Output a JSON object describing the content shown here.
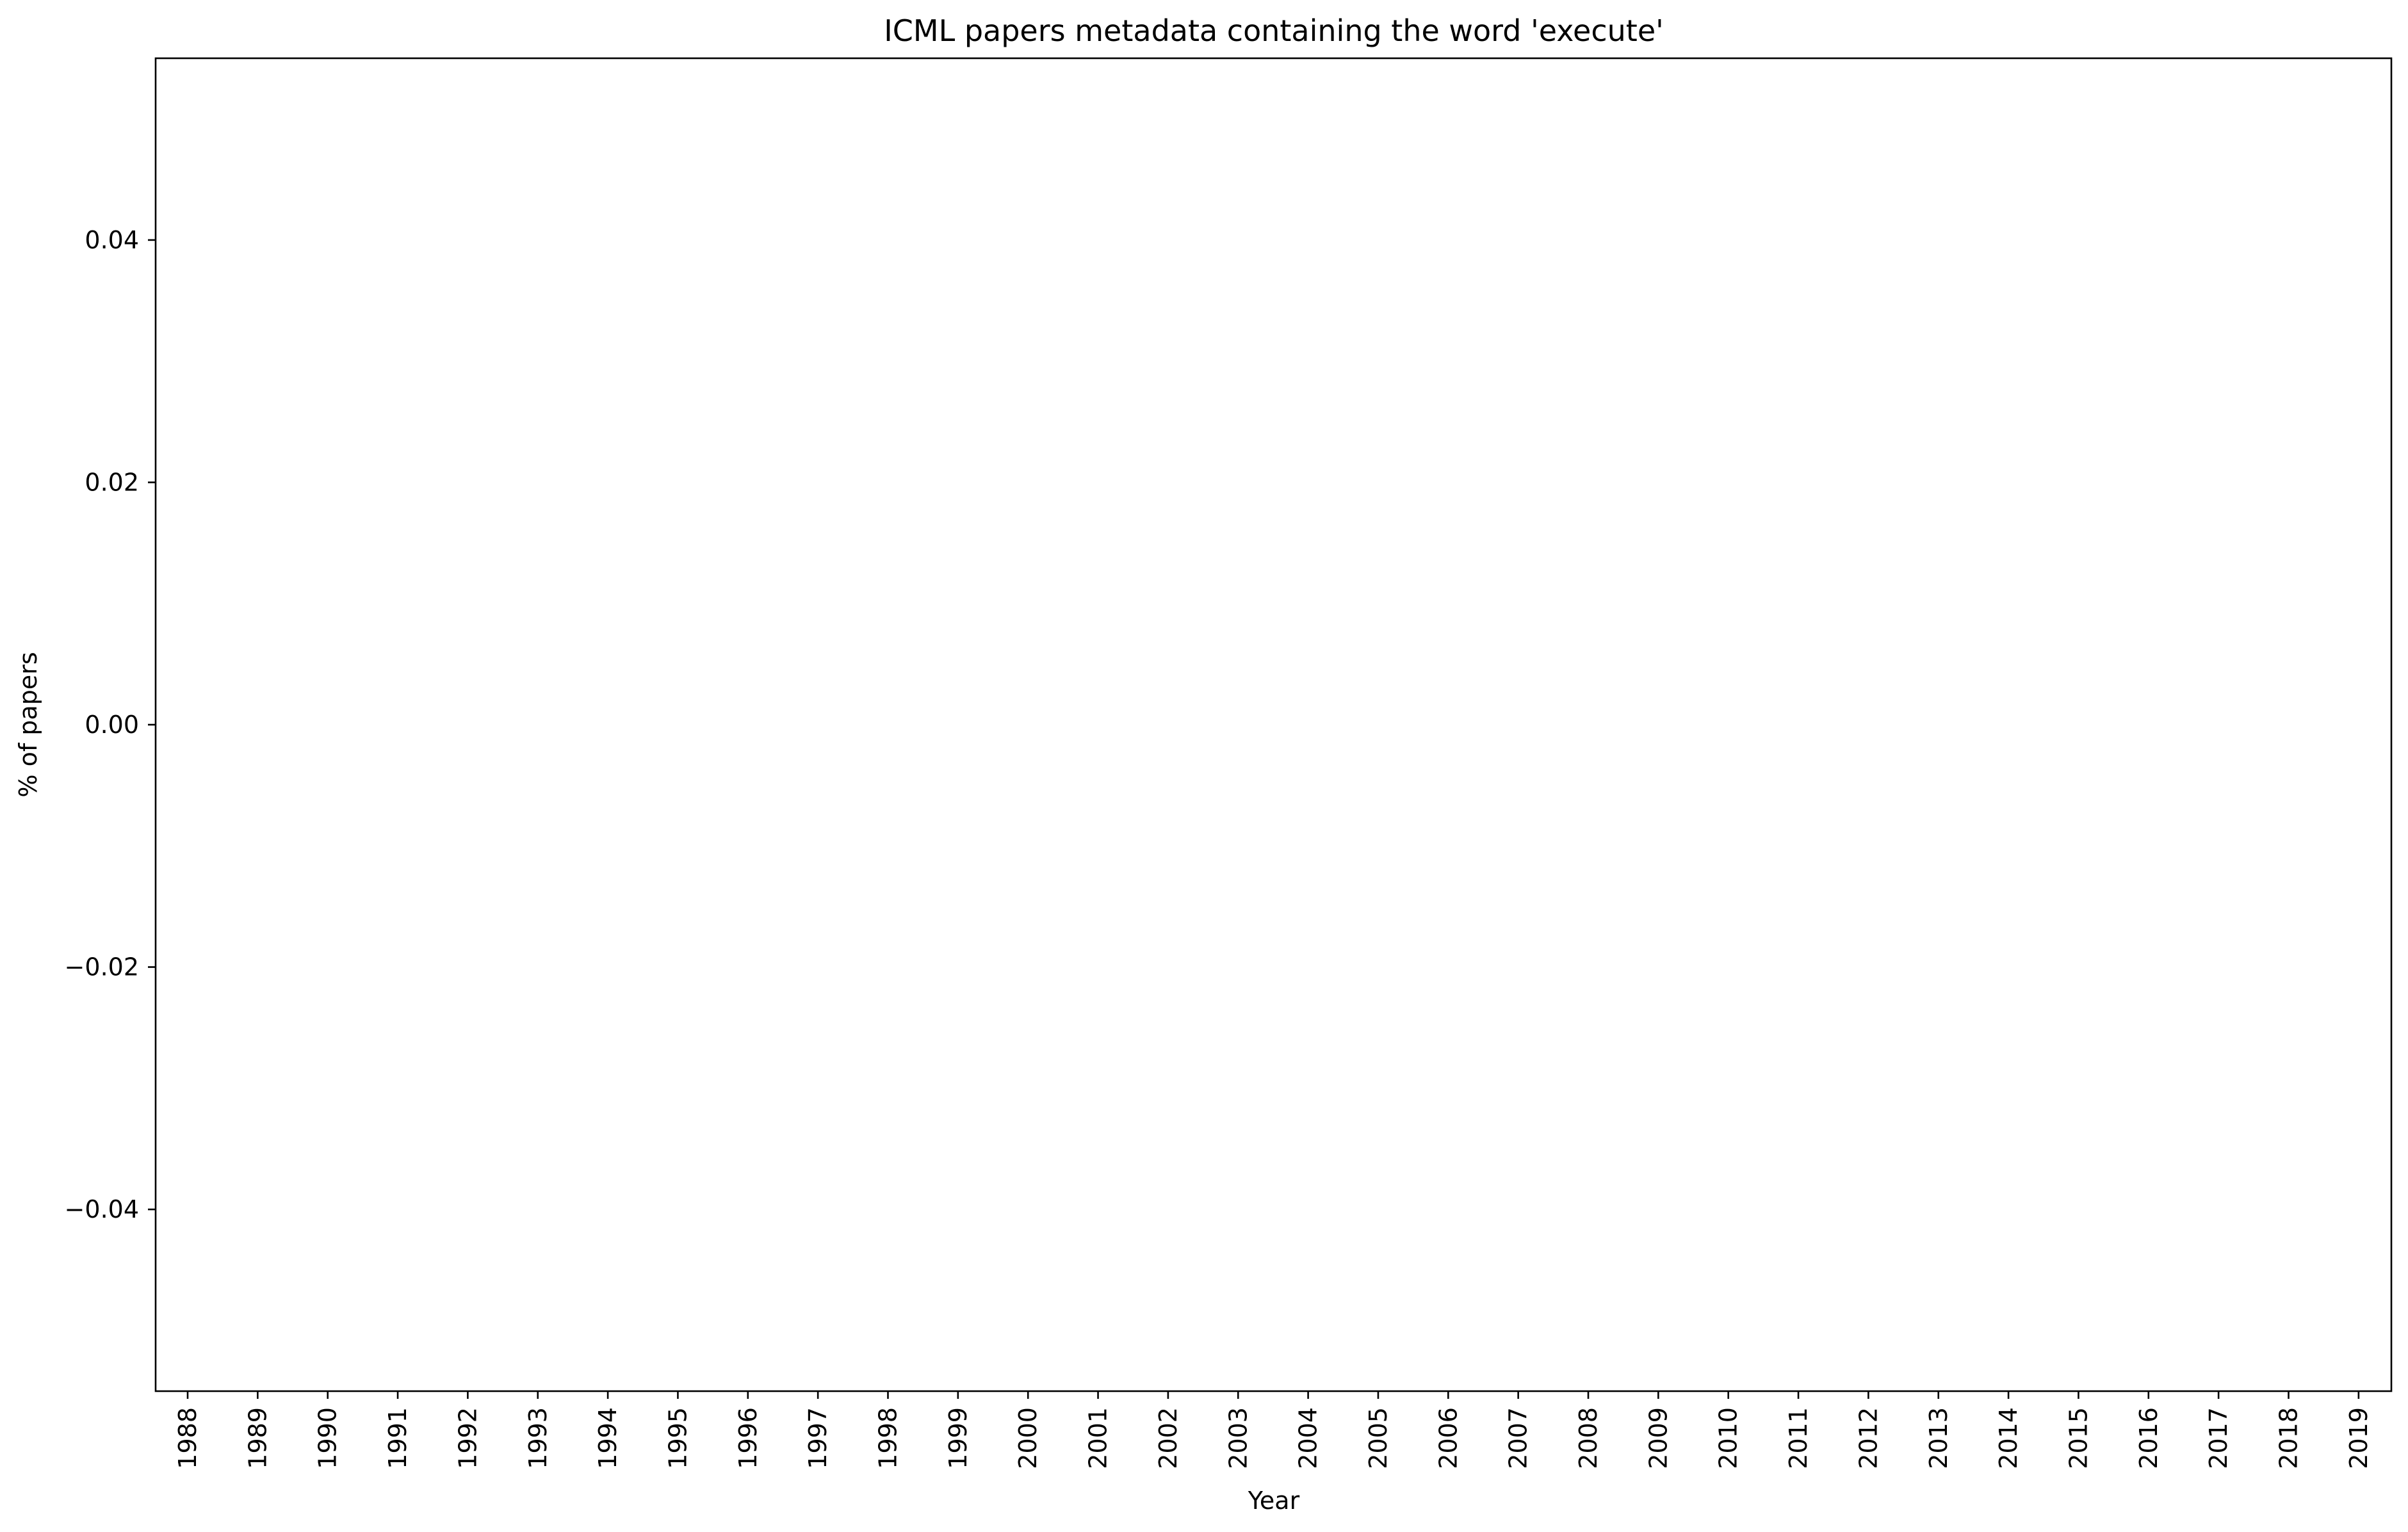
{
  "chart_data": {
    "type": "line",
    "title": "ICML papers metadata containing the word 'execute'",
    "xlabel": "Year",
    "ylabel": "% of papers",
    "categories": [
      "1988",
      "1989",
      "1990",
      "1991",
      "1992",
      "1993",
      "1994",
      "1995",
      "1996",
      "1997",
      "1998",
      "1999",
      "2000",
      "2001",
      "2002",
      "2003",
      "2004",
      "2005",
      "2006",
      "2007",
      "2008",
      "2009",
      "2010",
      "2011",
      "2012",
      "2013",
      "2014",
      "2015",
      "2016",
      "2017",
      "2018",
      "2019"
    ],
    "yticks": [
      0.04,
      0.02,
      0.0,
      -0.02,
      -0.04
    ],
    "ytick_labels": [
      "0.04",
      "0.02",
      "0.00",
      "−0.02",
      "−0.04"
    ],
    "ylim": [
      -0.055,
      0.055
    ],
    "series": [],
    "grid": false,
    "legend": "none"
  }
}
